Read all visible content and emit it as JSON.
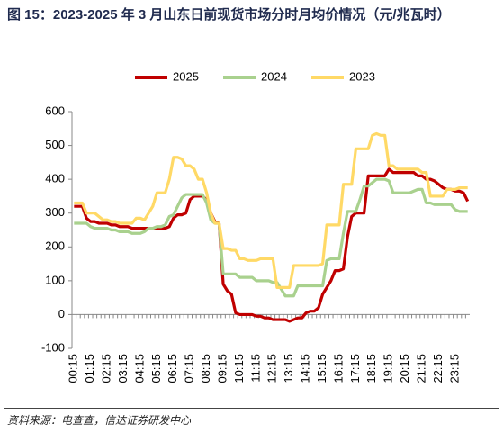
{
  "chart_data": {
    "type": "line",
    "title": "图 15：2023-2025 年 3 月山东日前现货市场分时月均价情况（元/兆瓦时）",
    "source": "资料来源：电查查，信达证券研发中心",
    "categories": [
      "00:15",
      null,
      null,
      null,
      "01:15",
      null,
      null,
      null,
      "02:15",
      null,
      null,
      null,
      "03:15",
      null,
      null,
      null,
      "04:15",
      null,
      null,
      null,
      "05:15",
      null,
      null,
      null,
      "06:15",
      null,
      null,
      null,
      "07:15",
      null,
      null,
      null,
      "08:15",
      null,
      null,
      null,
      "09:15",
      null,
      null,
      null,
      "10:15",
      null,
      null,
      null,
      "11:15",
      null,
      null,
      null,
      "12:15",
      null,
      null,
      null,
      "13:15",
      null,
      null,
      null,
      "14:15",
      null,
      null,
      null,
      "15:15",
      null,
      null,
      null,
      "16:15",
      null,
      null,
      null,
      "17:15",
      null,
      null,
      null,
      "18:15",
      null,
      null,
      null,
      "19:15",
      null,
      null,
      null,
      "20:15",
      null,
      null,
      null,
      "21:15",
      null,
      null,
      null,
      "22:15",
      null,
      null,
      null,
      "23:15",
      null,
      null,
      null
    ],
    "series": [
      {
        "name": "2025",
        "color": "#c00000",
        "values": [
          320,
          320,
          320,
          285,
          275,
          275,
          270,
          270,
          270,
          265,
          265,
          260,
          260,
          260,
          255,
          255,
          255,
          255,
          255,
          255,
          255,
          255,
          255,
          260,
          285,
          295,
          295,
          300,
          340,
          350,
          350,
          350,
          340,
          300,
          275,
          270,
          90,
          70,
          60,
          5,
          0,
          0,
          0,
          0,
          -5,
          -5,
          -10,
          -10,
          -15,
          -15,
          -15,
          -15,
          -20,
          -15,
          -10,
          -10,
          5,
          10,
          10,
          20,
          60,
          80,
          100,
          130,
          130,
          135,
          230,
          290,
          300,
          300,
          300,
          410,
          410,
          410,
          410,
          410,
          430,
          420,
          420,
          420,
          420,
          420,
          420,
          410,
          410,
          400,
          400,
          395,
          385,
          375,
          370,
          370,
          365,
          365,
          360,
          335
        ]
      },
      {
        "name": "2024",
        "color": "#a9d18e",
        "values": [
          270,
          270,
          270,
          270,
          260,
          255,
          255,
          255,
          255,
          250,
          250,
          245,
          245,
          245,
          240,
          240,
          240,
          245,
          255,
          255,
          260,
          260,
          265,
          290,
          295,
          320,
          345,
          355,
          355,
          355,
          355,
          355,
          330,
          280,
          270,
          270,
          120,
          120,
          120,
          120,
          110,
          110,
          110,
          110,
          100,
          100,
          100,
          100,
          95,
          95,
          75,
          55,
          55,
          55,
          85,
          85,
          85,
          85,
          85,
          85,
          85,
          160,
          165,
          165,
          165,
          240,
          305,
          305,
          305,
          340,
          380,
          380,
          390,
          400,
          400,
          400,
          395,
          360,
          360,
          360,
          360,
          360,
          365,
          370,
          370,
          330,
          330,
          325,
          325,
          325,
          325,
          325,
          310,
          305,
          305,
          305
        ]
      },
      {
        "name": "2023",
        "color": "#ffd966",
        "values": [
          330,
          330,
          330,
          300,
          300,
          300,
          290,
          280,
          280,
          275,
          275,
          270,
          270,
          270,
          270,
          285,
          285,
          280,
          300,
          320,
          360,
          360,
          360,
          400,
          465,
          465,
          460,
          440,
          440,
          430,
          400,
          400,
          360,
          300,
          270,
          270,
          195,
          195,
          190,
          190,
          165,
          165,
          160,
          160,
          160,
          165,
          165,
          165,
          165,
          80,
          80,
          80,
          80,
          145,
          145,
          145,
          145,
          145,
          145,
          145,
          150,
          265,
          265,
          265,
          265,
          385,
          385,
          385,
          490,
          490,
          490,
          490,
          530,
          535,
          530,
          530,
          440,
          440,
          430,
          430,
          430,
          430,
          430,
          430,
          420,
          420,
          350,
          350,
          350,
          350,
          370,
          370,
          370,
          375,
          375,
          375
        ]
      }
    ],
    "ylim": [
      -100,
      600
    ],
    "yticks": [
      -100,
      0,
      100,
      200,
      300,
      400,
      500,
      600
    ],
    "legend": "top"
  }
}
